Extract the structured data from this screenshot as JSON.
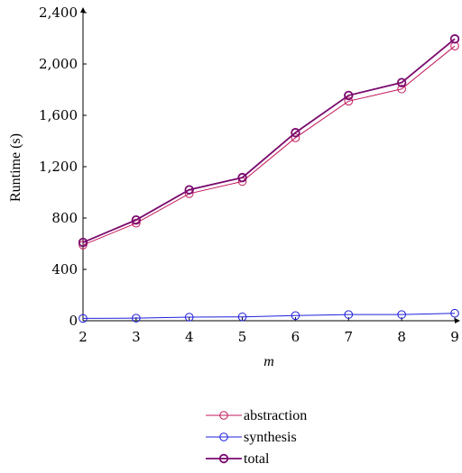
{
  "chart_data": {
    "type": "line",
    "title": "",
    "xlabel": "m",
    "ylabel": "Runtime (s)",
    "x": [
      2,
      3,
      4,
      5,
      6,
      7,
      8,
      9
    ],
    "x_ticks": [
      "2",
      "3",
      "4",
      "5",
      "6",
      "7",
      "8",
      "9"
    ],
    "y_ticks": [
      "0",
      "400",
      "800",
      "1,200",
      "1,600",
      "2,000",
      "2,400"
    ],
    "xlim": [
      2,
      9
    ],
    "ylim": [
      0,
      2400
    ],
    "grid": false,
    "legend_position": "bottom",
    "series": [
      {
        "name": "abstraction",
        "color": "#c2185b",
        "values": [
          590,
          760,
          990,
          1085,
          1425,
          1710,
          1805,
          2140
        ]
      },
      {
        "name": "synthesis",
        "color": "#1f1fdc",
        "values": [
          18,
          20,
          28,
          30,
          40,
          48,
          48,
          58
        ]
      },
      {
        "name": "total",
        "color": "#7a0a6e",
        "values": [
          610,
          785,
          1020,
          1115,
          1465,
          1755,
          1855,
          2195
        ]
      }
    ]
  }
}
